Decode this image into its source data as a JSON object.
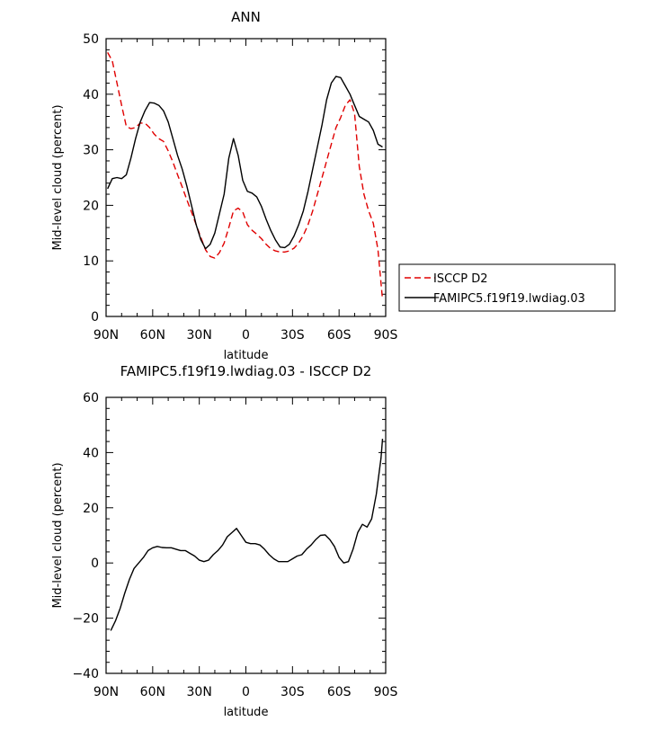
{
  "chart_data": [
    {
      "type": "line",
      "title": "ANN",
      "xlabel": "latitude",
      "ylabel": "Mid-level cloud (percent)",
      "xlim": [
        90,
        -90
      ],
      "ylim": [
        0,
        50
      ],
      "x_ticks": [
        90,
        60,
        30,
        0,
        -30,
        -60,
        -90
      ],
      "x_tick_labels": [
        "90N",
        "60N",
        "30N",
        "0",
        "30S",
        "60S",
        "90S"
      ],
      "y_ticks": [
        0,
        10,
        20,
        30,
        40,
        50
      ],
      "y_tick_labels": [
        "0",
        "10",
        "20",
        "30",
        "40",
        "50"
      ],
      "grid": false,
      "legend_position": "right",
      "series": [
        {
          "name": "ISCCP D2",
          "color": "#e00000",
          "dash": "dashed",
          "x": [
            89,
            86,
            83,
            80,
            77,
            74,
            71,
            68,
            65,
            62,
            59,
            56,
            53,
            50,
            47,
            44,
            41,
            38,
            35,
            32,
            29,
            26,
            23,
            20,
            17,
            14,
            11,
            8,
            5,
            2,
            -1,
            -4,
            -7,
            -10,
            -13,
            -16,
            -19,
            -22,
            -25,
            -28,
            -31,
            -34,
            -37,
            -40,
            -43,
            -46,
            -49,
            -52,
            -55,
            -58,
            -61,
            -64,
            -67,
            -70,
            -73,
            -76,
            -79,
            -82,
            -85,
            -88
          ],
          "y": [
            47.5,
            46.0,
            42.0,
            38.0,
            34.2,
            33.8,
            34.0,
            34.8,
            34.8,
            34.0,
            32.8,
            32.0,
            31.5,
            29.8,
            27.8,
            25.5,
            23.3,
            21.0,
            18.8,
            16.5,
            14.2,
            12.0,
            10.8,
            10.5,
            11.5,
            13.2,
            16.0,
            19.0,
            19.5,
            18.8,
            16.5,
            15.5,
            14.8,
            14.0,
            13.0,
            12.2,
            11.8,
            11.6,
            11.6,
            11.8,
            12.3,
            13.2,
            14.6,
            16.5,
            19.0,
            22.0,
            25.0,
            28.0,
            31.0,
            34.0,
            35.8,
            38.0,
            39.0,
            36.5,
            27.0,
            22.0,
            19.0,
            16.8,
            12.0,
            3.0
          ]
        },
        {
          "name": "FAMIPC5.f19f19.lwdiag.03",
          "color": "#000000",
          "dash": "solid",
          "x": [
            89,
            86,
            83,
            80,
            77,
            74,
            71,
            68,
            65,
            62,
            59,
            56,
            53,
            50,
            47,
            44,
            41,
            38,
            35,
            32,
            29,
            26,
            23,
            20,
            17,
            14,
            11,
            8,
            5,
            2,
            -1,
            -4,
            -7,
            -10,
            -13,
            -16,
            -19,
            -22,
            -25,
            -28,
            -31,
            -34,
            -37,
            -40,
            -43,
            -46,
            -49,
            -52,
            -55,
            -58,
            -61,
            -64,
            -67,
            -70,
            -73,
            -76,
            -79,
            -82,
            -85,
            -88
          ],
          "y": [
            23.0,
            24.8,
            25.0,
            24.8,
            25.5,
            28.5,
            32.0,
            35.0,
            37.0,
            38.5,
            38.4,
            38.0,
            37.0,
            35.0,
            32.0,
            29.0,
            26.5,
            23.5,
            20.0,
            16.5,
            13.8,
            12.2,
            13.0,
            15.0,
            18.5,
            22.0,
            28.5,
            32.0,
            29.0,
            24.5,
            22.5,
            22.2,
            21.5,
            19.8,
            17.5,
            15.5,
            13.8,
            12.5,
            12.4,
            13.0,
            14.5,
            16.5,
            19.0,
            22.5,
            26.5,
            30.5,
            34.5,
            39.0,
            42.0,
            43.2,
            43.0,
            41.5,
            40.0,
            38.0,
            36.0,
            35.5,
            35.0,
            33.5,
            31.0,
            30.5
          ]
        }
      ]
    },
    {
      "type": "line",
      "title": "FAMIPC5.f19f19.lwdiag.03 - ISCCP D2",
      "xlabel": "latitude",
      "ylabel": "Mid-level cloud (percent)",
      "xlim": [
        90,
        -90
      ],
      "ylim": [
        -40,
        60
      ],
      "x_ticks": [
        90,
        60,
        30,
        0,
        -30,
        -60,
        -90
      ],
      "x_tick_labels": [
        "90N",
        "60N",
        "30N",
        "0",
        "30S",
        "60S",
        "90S"
      ],
      "y_ticks": [
        -40,
        -20,
        0,
        20,
        40,
        60
      ],
      "y_tick_labels": [
        "−40",
        "−20",
        "0",
        "20",
        "40",
        "60"
      ],
      "grid": false,
      "series": [
        {
          "color": "#000000",
          "dash": "solid",
          "x": [
            87,
            84,
            81,
            78,
            75,
            72,
            69,
            66,
            63,
            60,
            57,
            54,
            51,
            48,
            45,
            42,
            39,
            36,
            33,
            30,
            27,
            24,
            21,
            18,
            15,
            12,
            9,
            6,
            3,
            0,
            -3,
            -6,
            -9,
            -12,
            -15,
            -18,
            -21,
            -24,
            -27,
            -30,
            -33,
            -36,
            -39,
            -42,
            -45,
            -48,
            -51,
            -54,
            -57,
            -60,
            -63,
            -66,
            -69,
            -72,
            -75,
            -78,
            -81,
            -84,
            -87,
            -88
          ],
          "y": [
            -24.5,
            -21.0,
            -16.5,
            -11.0,
            -6.0,
            -2.0,
            0.0,
            2.0,
            4.5,
            5.5,
            6.0,
            5.6,
            5.5,
            5.5,
            5.0,
            4.5,
            4.5,
            3.5,
            2.5,
            1.0,
            0.5,
            1.0,
            3.0,
            4.5,
            6.5,
            9.5,
            11.0,
            12.5,
            10.0,
            7.5,
            7.0,
            7.0,
            6.5,
            5.0,
            3.0,
            1.5,
            0.5,
            0.5,
            0.5,
            1.5,
            2.5,
            3.0,
            5.0,
            6.5,
            8.5,
            10.0,
            10.2,
            8.5,
            6.0,
            2.0,
            0.0,
            0.5,
            5.0,
            11.0,
            14.0,
            13.0,
            16.0,
            25.0,
            38.0,
            45.0
          ]
        }
      ]
    }
  ]
}
